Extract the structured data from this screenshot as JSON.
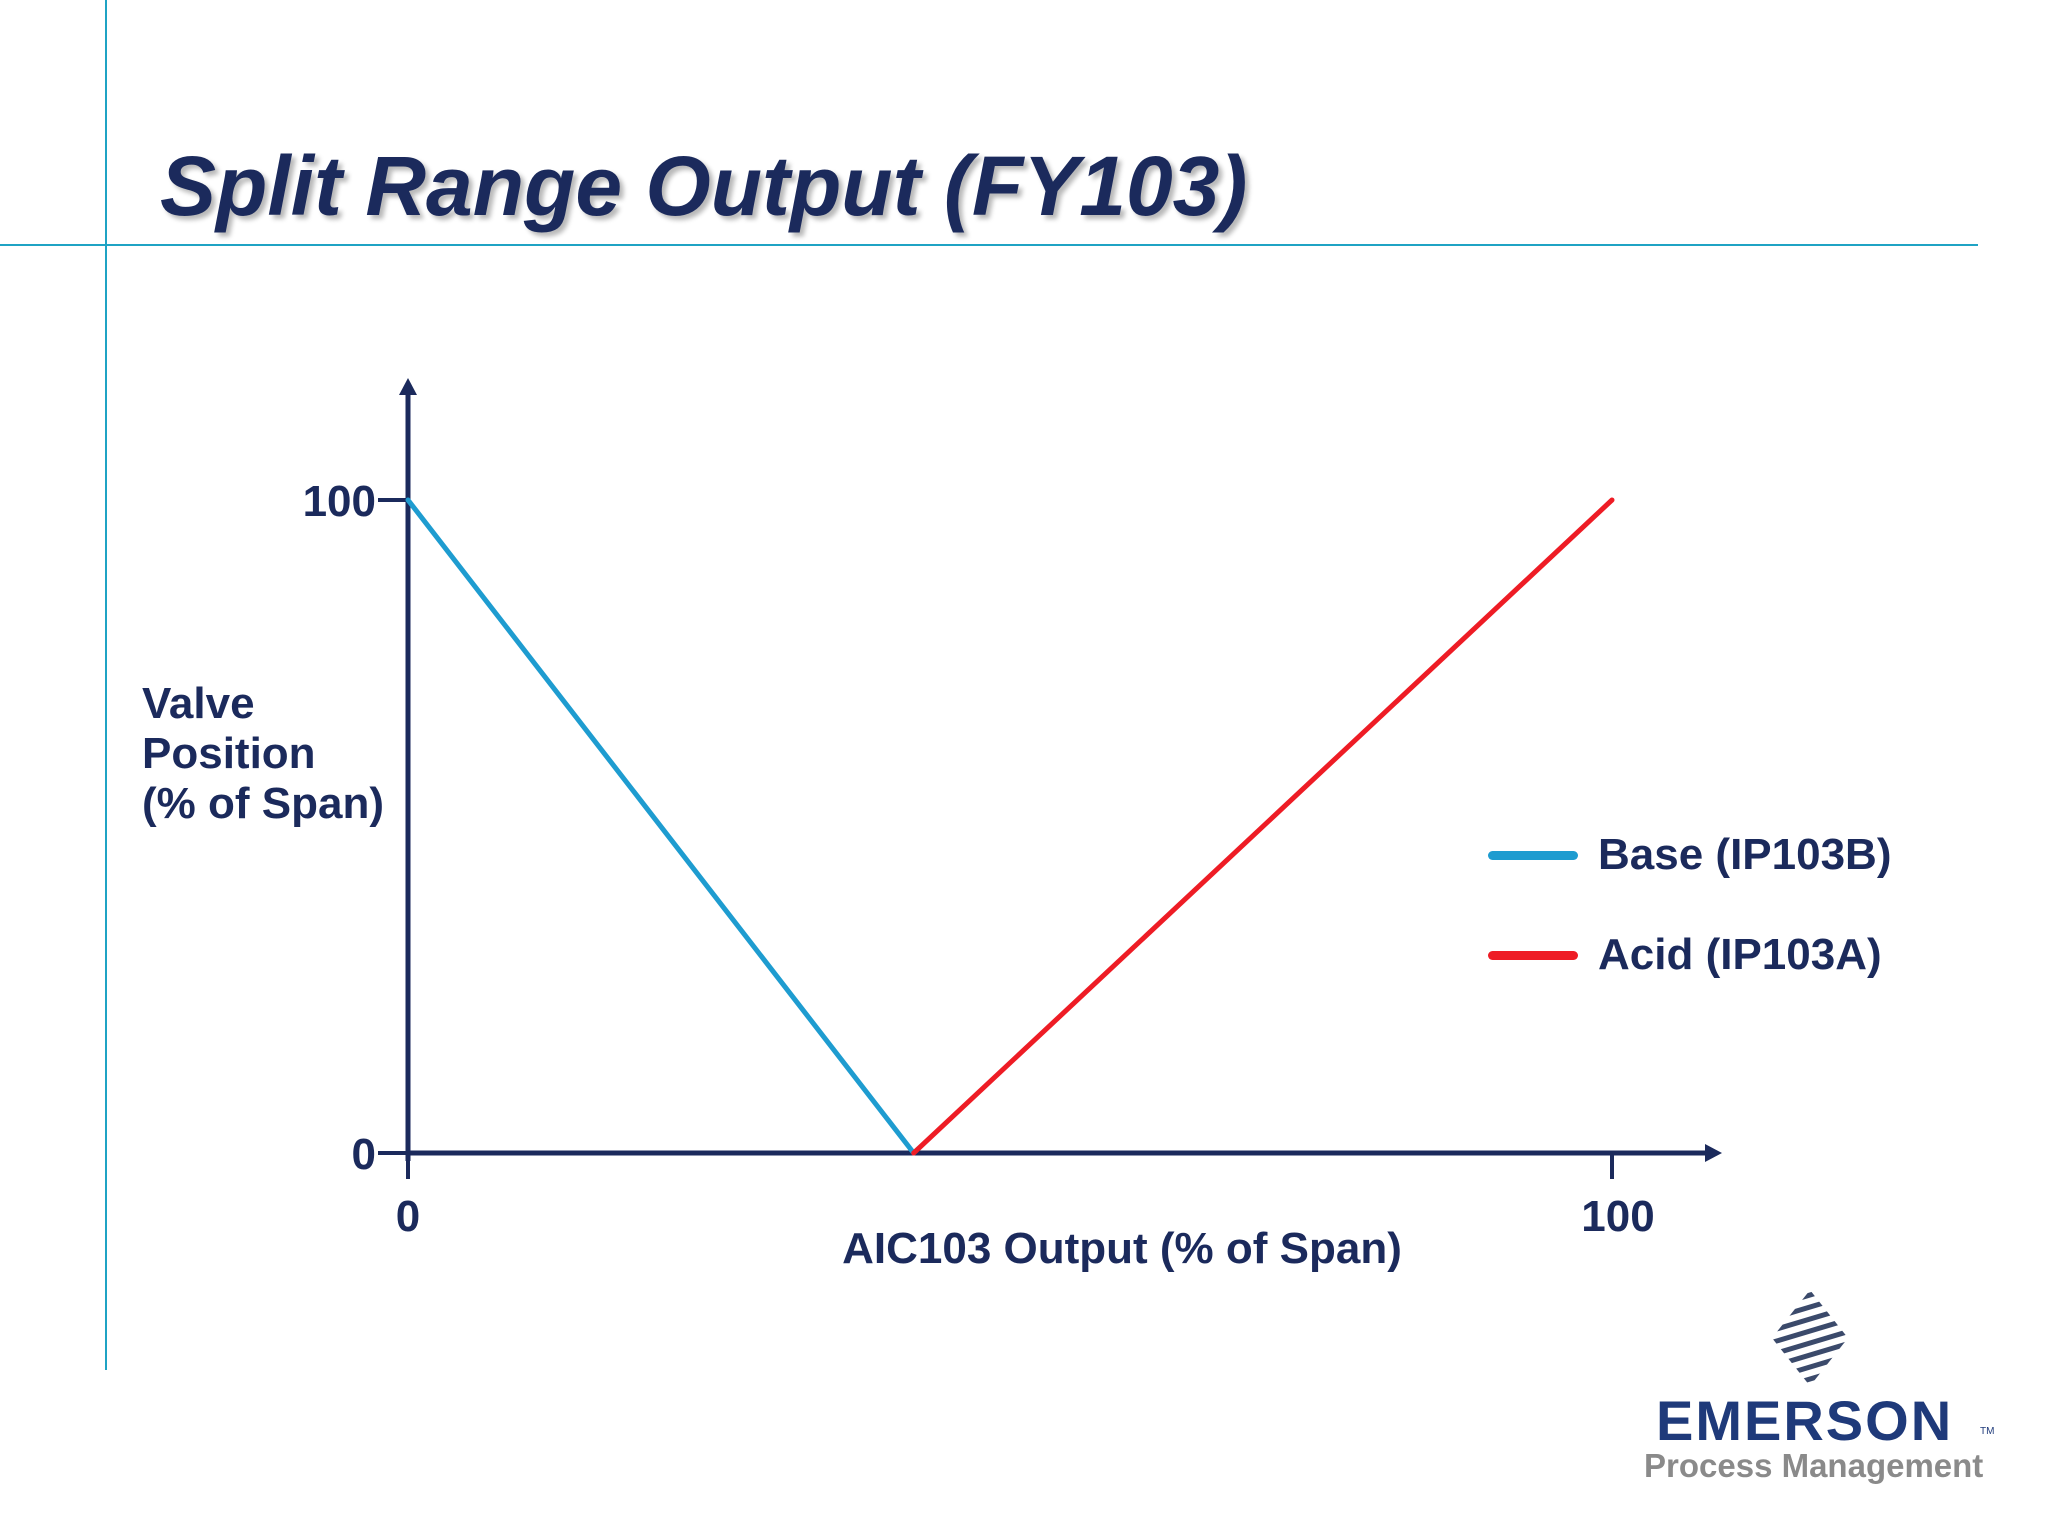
{
  "slide": {
    "title": "Split Range Output (FY103)",
    "rule_color": "#1fa3c4"
  },
  "chart_data": {
    "type": "line",
    "title": "Split Range Output (FY103)",
    "xlabel": "AIC103 Output (% of Span)",
    "ylabel_lines": [
      "Valve",
      "Position",
      "(% of Span)"
    ],
    "xlim": [
      0,
      100
    ],
    "ylim": [
      0,
      100
    ],
    "x_tick_labels": [
      "0",
      "100"
    ],
    "y_tick_labels": [
      "0",
      "100"
    ],
    "grid": false,
    "legend_position": "right",
    "series": [
      {
        "name": "Base (IP103B)",
        "color": "#1e9cd0",
        "x": [
          0,
          42
        ],
        "y": [
          100,
          0
        ]
      },
      {
        "name": "Acid (IP103A)",
        "color": "#ee1c25",
        "x": [
          42,
          100
        ],
        "y": [
          0,
          100
        ]
      }
    ],
    "axis_color": "#1b2a5c"
  },
  "logo": {
    "name": "EMERSON",
    "trademark": "TM",
    "subtitle": "Process Management"
  }
}
